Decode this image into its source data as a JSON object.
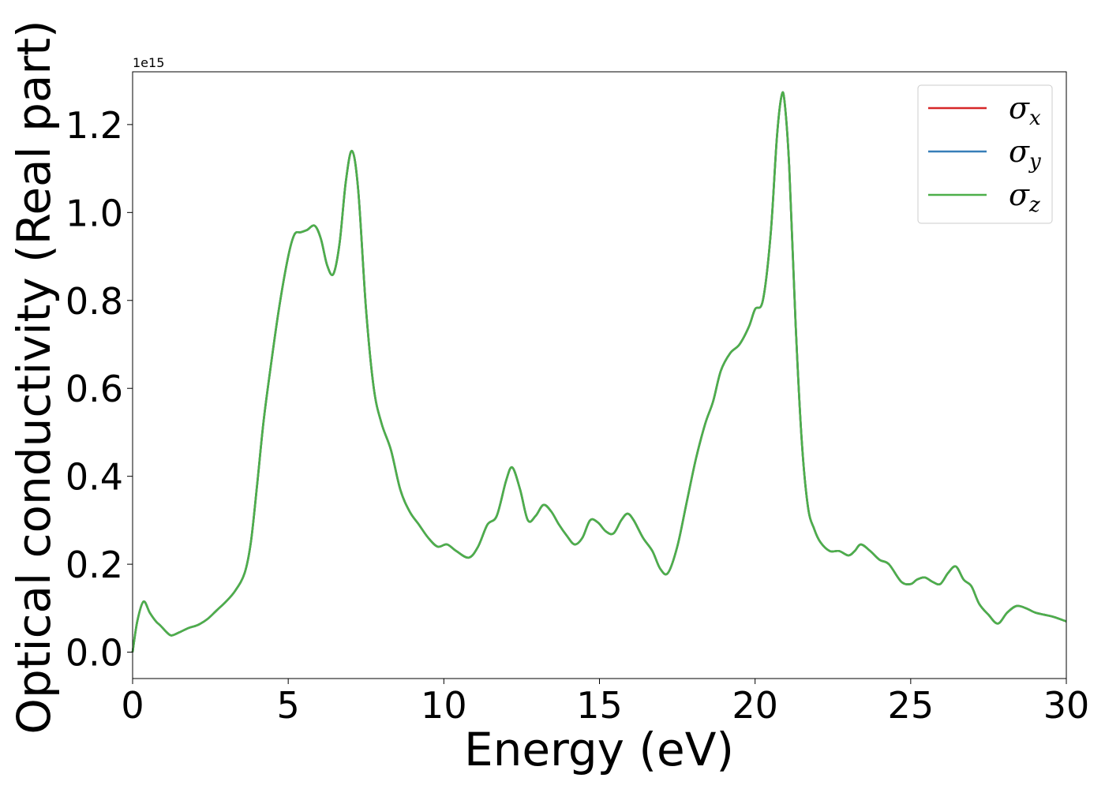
{
  "chart_data": {
    "type": "line",
    "xlabel": "Energy (eV)",
    "ylabel": "Optical conductivity (Real part)",
    "y_offset_label": "1e15",
    "xlim": [
      0,
      30
    ],
    "ylim": [
      -0.06,
      1.32
    ],
    "x_ticks": [
      0,
      5,
      10,
      15,
      20,
      25,
      30
    ],
    "x_tick_labels": [
      "0",
      "5",
      "10",
      "15",
      "20",
      "25",
      "30"
    ],
    "y_ticks": [
      0.0,
      0.2,
      0.4,
      0.6,
      0.8,
      1.0,
      1.2
    ],
    "y_tick_labels": [
      "0.0",
      "0.2",
      "0.4",
      "0.6",
      "0.8",
      "1.0",
      "1.2"
    ],
    "grid": false,
    "legend_position": "top-right",
    "series": [
      {
        "name": "σx",
        "label_base": "σ",
        "label_sub": "x",
        "color": "#d62728",
        "x": [
          0.0,
          0.15,
          0.35,
          0.55,
          0.75,
          0.9,
          1.1,
          1.25,
          1.5,
          1.8,
          2.1,
          2.4,
          2.7,
          3.0,
          3.3,
          3.6,
          3.8,
          4.0,
          4.2,
          4.4,
          4.7,
          5.0,
          5.2,
          5.4,
          5.6,
          5.85,
          6.05,
          6.25,
          6.45,
          6.65,
          6.85,
          7.05,
          7.25,
          7.5,
          7.75,
          8.0,
          8.3,
          8.6,
          8.9,
          9.2,
          9.5,
          9.8,
          10.1,
          10.4,
          10.8,
          11.1,
          11.4,
          11.7,
          12.0,
          12.2,
          12.45,
          12.7,
          12.95,
          13.2,
          13.45,
          13.7,
          13.95,
          14.2,
          14.45,
          14.7,
          14.95,
          15.2,
          15.45,
          15.7,
          15.9,
          16.1,
          16.4,
          16.7,
          16.95,
          17.2,
          17.5,
          17.8,
          18.1,
          18.4,
          18.65,
          18.9,
          19.2,
          19.5,
          19.8,
          20.0,
          20.25,
          20.5,
          20.7,
          20.85,
          20.95,
          21.1,
          21.3,
          21.5,
          21.7,
          21.9,
          22.1,
          22.4,
          22.7,
          23.0,
          23.2,
          23.4,
          23.7,
          24.0,
          24.3,
          24.7,
          25.0,
          25.2,
          25.45,
          25.7,
          25.95,
          26.2,
          26.45,
          26.7,
          26.95,
          27.2,
          27.5,
          27.8,
          28.1,
          28.4,
          28.7,
          29.0,
          29.3,
          29.6,
          30.0
        ],
        "values": [
          0.0,
          0.07,
          0.115,
          0.09,
          0.07,
          0.06,
          0.045,
          0.038,
          0.045,
          0.055,
          0.062,
          0.075,
          0.095,
          0.115,
          0.14,
          0.18,
          0.25,
          0.38,
          0.52,
          0.63,
          0.78,
          0.9,
          0.95,
          0.955,
          0.96,
          0.97,
          0.94,
          0.88,
          0.86,
          0.93,
          1.07,
          1.14,
          1.05,
          0.78,
          0.6,
          0.52,
          0.46,
          0.37,
          0.32,
          0.29,
          0.26,
          0.24,
          0.245,
          0.23,
          0.215,
          0.24,
          0.29,
          0.31,
          0.39,
          0.42,
          0.37,
          0.3,
          0.31,
          0.335,
          0.32,
          0.29,
          0.265,
          0.245,
          0.26,
          0.3,
          0.295,
          0.275,
          0.27,
          0.3,
          0.315,
          0.3,
          0.26,
          0.23,
          0.19,
          0.18,
          0.24,
          0.34,
          0.44,
          0.52,
          0.57,
          0.64,
          0.68,
          0.7,
          0.74,
          0.78,
          0.8,
          0.95,
          1.17,
          1.265,
          1.25,
          1.1,
          0.75,
          0.48,
          0.33,
          0.28,
          0.25,
          0.23,
          0.23,
          0.22,
          0.23,
          0.245,
          0.23,
          0.21,
          0.2,
          0.16,
          0.155,
          0.165,
          0.17,
          0.16,
          0.155,
          0.18,
          0.195,
          0.165,
          0.15,
          0.11,
          0.085,
          0.065,
          0.09,
          0.105,
          0.1,
          0.09,
          0.085,
          0.08,
          0.07
        ]
      },
      {
        "name": "σy",
        "label_base": "σ",
        "label_sub": "y",
        "color": "#377eb8",
        "x": [
          0.0,
          0.15,
          0.35,
          0.55,
          0.75,
          0.9,
          1.1,
          1.25,
          1.5,
          1.8,
          2.1,
          2.4,
          2.7,
          3.0,
          3.3,
          3.6,
          3.8,
          4.0,
          4.2,
          4.4,
          4.7,
          5.0,
          5.2,
          5.4,
          5.6,
          5.85,
          6.05,
          6.25,
          6.45,
          6.65,
          6.85,
          7.05,
          7.25,
          7.5,
          7.75,
          8.0,
          8.3,
          8.6,
          8.9,
          9.2,
          9.5,
          9.8,
          10.1,
          10.4,
          10.8,
          11.1,
          11.4,
          11.7,
          12.0,
          12.2,
          12.45,
          12.7,
          12.95,
          13.2,
          13.45,
          13.7,
          13.95,
          14.2,
          14.45,
          14.7,
          14.95,
          15.2,
          15.45,
          15.7,
          15.9,
          16.1,
          16.4,
          16.7,
          16.95,
          17.2,
          17.5,
          17.8,
          18.1,
          18.4,
          18.65,
          18.9,
          19.2,
          19.5,
          19.8,
          20.0,
          20.25,
          20.5,
          20.7,
          20.85,
          20.95,
          21.1,
          21.3,
          21.5,
          21.7,
          21.9,
          22.1,
          22.4,
          22.7,
          23.0,
          23.2,
          23.4,
          23.7,
          24.0,
          24.3,
          24.7,
          25.0,
          25.2,
          25.45,
          25.7,
          25.95,
          26.2,
          26.45,
          26.7,
          26.95,
          27.2,
          27.5,
          27.8,
          28.1,
          28.4,
          28.7,
          29.0,
          29.3,
          29.6,
          30.0
        ],
        "values": [
          0.0,
          0.07,
          0.115,
          0.09,
          0.07,
          0.06,
          0.045,
          0.038,
          0.045,
          0.055,
          0.062,
          0.075,
          0.095,
          0.115,
          0.14,
          0.18,
          0.25,
          0.38,
          0.52,
          0.63,
          0.78,
          0.9,
          0.95,
          0.955,
          0.96,
          0.97,
          0.94,
          0.88,
          0.86,
          0.93,
          1.07,
          1.14,
          1.05,
          0.78,
          0.6,
          0.52,
          0.46,
          0.37,
          0.32,
          0.29,
          0.26,
          0.24,
          0.245,
          0.23,
          0.215,
          0.24,
          0.29,
          0.31,
          0.39,
          0.42,
          0.37,
          0.3,
          0.31,
          0.335,
          0.32,
          0.29,
          0.265,
          0.245,
          0.26,
          0.3,
          0.295,
          0.275,
          0.27,
          0.3,
          0.315,
          0.3,
          0.26,
          0.23,
          0.19,
          0.18,
          0.24,
          0.34,
          0.44,
          0.52,
          0.57,
          0.64,
          0.68,
          0.7,
          0.74,
          0.78,
          0.8,
          0.95,
          1.17,
          1.265,
          1.25,
          1.1,
          0.75,
          0.48,
          0.33,
          0.28,
          0.25,
          0.23,
          0.23,
          0.22,
          0.23,
          0.245,
          0.23,
          0.21,
          0.2,
          0.16,
          0.155,
          0.165,
          0.17,
          0.16,
          0.155,
          0.18,
          0.195,
          0.165,
          0.15,
          0.11,
          0.085,
          0.065,
          0.09,
          0.105,
          0.1,
          0.09,
          0.085,
          0.08,
          0.07
        ]
      },
      {
        "name": "σz",
        "label_base": "σ",
        "label_sub": "z",
        "color": "#4daf4a",
        "x": [
          0.0,
          0.15,
          0.35,
          0.55,
          0.75,
          0.9,
          1.1,
          1.25,
          1.5,
          1.8,
          2.1,
          2.4,
          2.7,
          3.0,
          3.3,
          3.6,
          3.8,
          4.0,
          4.2,
          4.4,
          4.7,
          5.0,
          5.2,
          5.4,
          5.6,
          5.85,
          6.05,
          6.25,
          6.45,
          6.65,
          6.85,
          7.05,
          7.25,
          7.5,
          7.75,
          8.0,
          8.3,
          8.6,
          8.9,
          9.2,
          9.5,
          9.8,
          10.1,
          10.4,
          10.8,
          11.1,
          11.4,
          11.7,
          12.0,
          12.2,
          12.45,
          12.7,
          12.95,
          13.2,
          13.45,
          13.7,
          13.95,
          14.2,
          14.45,
          14.7,
          14.95,
          15.2,
          15.45,
          15.7,
          15.9,
          16.1,
          16.4,
          16.7,
          16.95,
          17.2,
          17.5,
          17.8,
          18.1,
          18.4,
          18.65,
          18.9,
          19.2,
          19.5,
          19.8,
          20.0,
          20.25,
          20.5,
          20.7,
          20.85,
          20.95,
          21.1,
          21.3,
          21.5,
          21.7,
          21.9,
          22.1,
          22.4,
          22.7,
          23.0,
          23.2,
          23.4,
          23.7,
          24.0,
          24.3,
          24.7,
          25.0,
          25.2,
          25.45,
          25.7,
          25.95,
          26.2,
          26.45,
          26.7,
          26.95,
          27.2,
          27.5,
          27.8,
          28.1,
          28.4,
          28.7,
          29.0,
          29.3,
          29.6,
          30.0
        ],
        "values": [
          0.0,
          0.07,
          0.115,
          0.09,
          0.07,
          0.06,
          0.045,
          0.038,
          0.045,
          0.055,
          0.062,
          0.075,
          0.095,
          0.115,
          0.14,
          0.18,
          0.25,
          0.38,
          0.52,
          0.63,
          0.78,
          0.9,
          0.95,
          0.955,
          0.96,
          0.97,
          0.94,
          0.88,
          0.86,
          0.93,
          1.07,
          1.14,
          1.05,
          0.78,
          0.6,
          0.52,
          0.46,
          0.37,
          0.32,
          0.29,
          0.26,
          0.24,
          0.245,
          0.23,
          0.215,
          0.24,
          0.29,
          0.31,
          0.39,
          0.42,
          0.37,
          0.3,
          0.31,
          0.335,
          0.32,
          0.29,
          0.265,
          0.245,
          0.26,
          0.3,
          0.295,
          0.275,
          0.27,
          0.3,
          0.315,
          0.3,
          0.26,
          0.23,
          0.19,
          0.18,
          0.24,
          0.34,
          0.44,
          0.52,
          0.57,
          0.64,
          0.68,
          0.7,
          0.74,
          0.78,
          0.8,
          0.95,
          1.17,
          1.265,
          1.25,
          1.1,
          0.75,
          0.48,
          0.33,
          0.28,
          0.25,
          0.23,
          0.23,
          0.22,
          0.23,
          0.245,
          0.23,
          0.21,
          0.2,
          0.16,
          0.155,
          0.165,
          0.17,
          0.16,
          0.155,
          0.18,
          0.195,
          0.165,
          0.15,
          0.11,
          0.085,
          0.065,
          0.09,
          0.105,
          0.1,
          0.09,
          0.085,
          0.08,
          0.07
        ]
      }
    ]
  }
}
